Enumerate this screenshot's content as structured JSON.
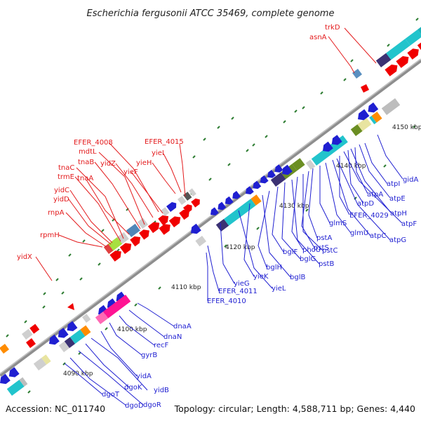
{
  "title": "Escherichia fergusonii ATCC 35469, complete genome",
  "footer": {
    "accession": "Accession: NC_011740",
    "summary": "Topology: circular; Length: 4,588,711 bp; Genes: 4,440"
  },
  "colors": {
    "backbone": "#8e8e8e",
    "forward_label": "#e31a1c",
    "reverse_label": "#1f1fd1",
    "tick_mark": "#2e7d32"
  },
  "ticks": [
    "4090 kbp",
    "4100 kbp",
    "4110 kbp",
    "4120 kbp",
    "4130 kbp",
    "4140 kbp",
    "4150 kbp"
  ],
  "labels": {
    "forward": [
      "trkD",
      "asnA",
      "EFER_4008",
      "mdtL",
      "tnaB",
      "tnaC",
      "trmE",
      "tnaA",
      "yidC",
      "yidD",
      "rnpA",
      "rpmH",
      "yidX",
      "yidZ",
      "yieF",
      "yieH",
      "yieI",
      "EFER_4015"
    ],
    "reverse": [
      "gidA",
      "atpI",
      "atpE",
      "atpA",
      "atpH",
      "atpF",
      "atpD",
      "EFER_4029",
      "atpG",
      "atpC",
      "glmU",
      "glmS",
      "pstA",
      "pstS",
      "pstC",
      "phoU",
      "pstB",
      "bglG",
      "bglF",
      "bglH",
      "bglB",
      "yieK",
      "yieL",
      "yieG",
      "EFER_4011",
      "EFER_4010",
      "dnaA",
      "dnaN",
      "recF",
      "gyrB",
      "yidA",
      "yidB",
      "dgoK",
      "dgoR",
      "dgoD",
      "dgoT"
    ]
  }
}
